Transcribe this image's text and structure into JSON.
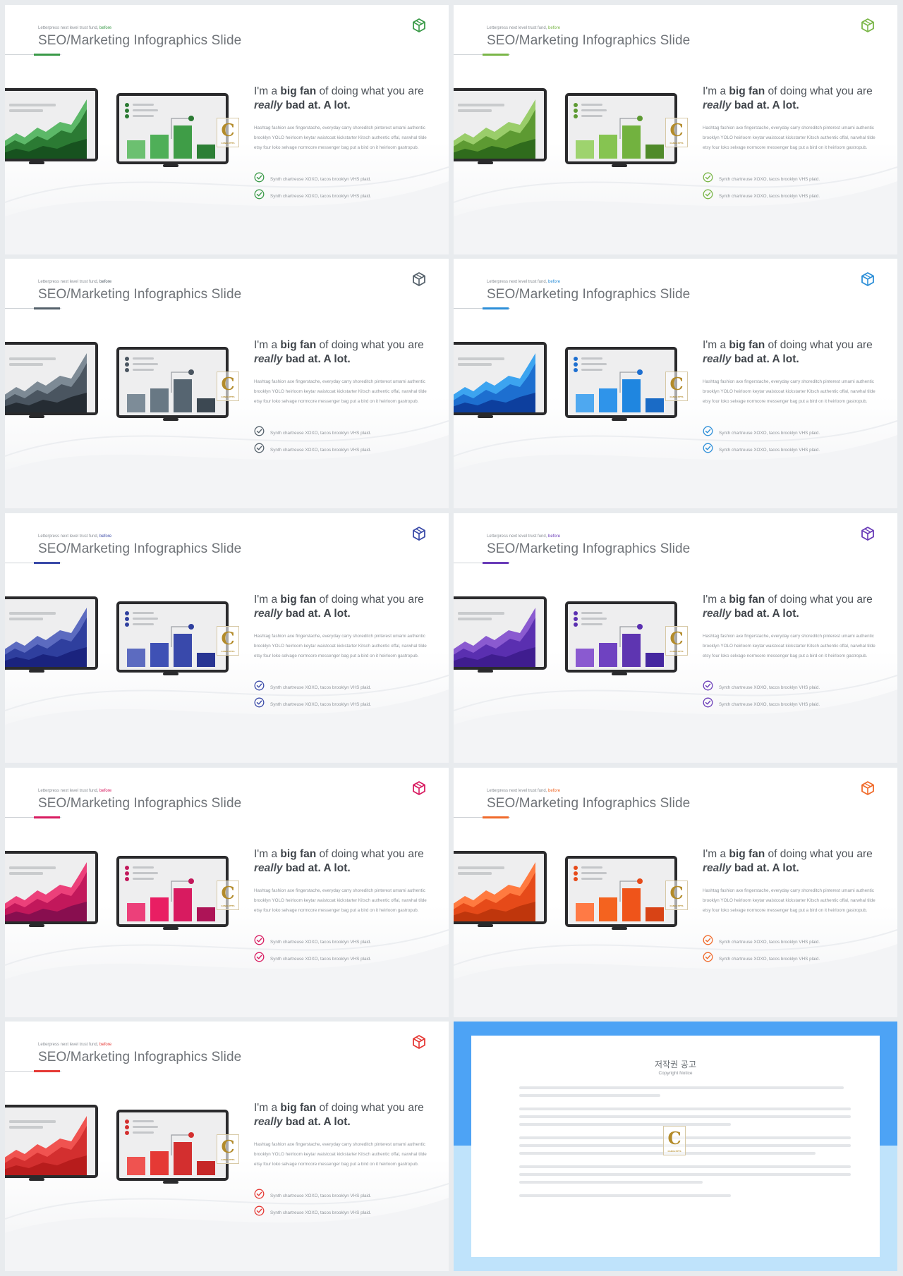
{
  "slides": [
    {
      "theme": "green1",
      "pre_text": "Letterpress next level trust fund,",
      "pre_accent": "before",
      "title": "SEO/Marketing Infographics Slide",
      "heading_pre": "I'm a ",
      "heading_bold": "big fan",
      "heading_mid": " of doing what you are ",
      "heading_italic": "really",
      "heading_post": " bad at. A lot.",
      "paragraph": "Hashtag fashion axe fingerstache, everyday carry shoreditch pinterest umami authentic brooklyn YOLO heirloom keytar waistcoat kickstarter Kitsch authentic offal, narwhal tilde etsy four loko selvage normcore messenger bag put a bird on it heirloom gastropub.",
      "checklist": [
        "Synth chartreuse XOXO, tacos brooklyn VHS plaid.",
        "Synth chartreuse XOXO, tacos brooklyn VHS plaid."
      ],
      "colors": {
        "accent": "#3a9a48",
        "dark": "#17521f",
        "mid": "#2b7a33",
        "light": "#5cb868",
        "bars": [
          "#6cc070",
          "#4faf58",
          "#3f9d47",
          "#2c7f35"
        ]
      }
    },
    {
      "theme": "green2",
      "pre_text": "Letterpress next level trust fund,",
      "pre_accent": "before",
      "title": "SEO/Marketing Infographics Slide",
      "heading_pre": "I'm a ",
      "heading_bold": "big fan",
      "heading_mid": " of doing what you are ",
      "heading_italic": "really",
      "heading_post": " bad at. A lot.",
      "paragraph": "Hashtag fashion axe fingerstache, everyday carry shoreditch pinterest umami authentic brooklyn YOLO heirloom keytar waistcoat kickstarter Kitsch authentic offal, narwhal tilde etsy four loko selvage normcore messenger bag put a bird on it heirloom gastropub.",
      "checklist": [
        "Synth chartreuse XOXO, tacos brooklyn VHS plaid.",
        "Synth chartreuse XOXO, tacos brooklyn VHS plaid."
      ],
      "colors": {
        "accent": "#7ab648",
        "dark": "#2f6b1c",
        "mid": "#5d9a32",
        "light": "#9acd6a",
        "bars": [
          "#9ed36e",
          "#86c451",
          "#72b23f",
          "#4f8a2a"
        ]
      }
    },
    {
      "theme": "slate",
      "pre_text": "Letterpress next level trust fund,",
      "pre_accent": "before",
      "title": "SEO/Marketing Infographics Slide",
      "heading_pre": "I'm a ",
      "heading_bold": "big fan",
      "heading_mid": " of doing what you are ",
      "heading_italic": "really",
      "heading_post": " bad at. A lot.",
      "paragraph": "Hashtag fashion axe fingerstache, everyday carry shoreditch pinterest umami authentic brooklyn YOLO heirloom keytar waistcoat kickstarter Kitsch authentic offal, narwhal tilde etsy four loko selvage normcore messenger bag put a bird on it heirloom gastropub.",
      "checklist": [
        "Synth chartreuse XOXO, tacos brooklyn VHS plaid.",
        "Synth chartreuse XOXO, tacos brooklyn VHS plaid."
      ],
      "colors": {
        "accent": "#55616b",
        "dark": "#252c33",
        "mid": "#4a5560",
        "light": "#7d8a95",
        "bars": [
          "#7d8c98",
          "#687884",
          "#566571",
          "#3c4852"
        ]
      }
    },
    {
      "theme": "blue",
      "pre_text": "Letterpress next level trust fund,",
      "pre_accent": "before",
      "title": "SEO/Marketing Infographics Slide",
      "heading_pre": "I'm a ",
      "heading_bold": "big fan",
      "heading_mid": " of doing what you are ",
      "heading_italic": "really",
      "heading_post": " bad at. A lot.",
      "paragraph": "Hashtag fashion axe fingerstache, everyday carry shoreditch pinterest umami authentic brooklyn YOLO heirloom keytar waistcoat kickstarter Kitsch authentic offal, narwhal tilde etsy four loko selvage normcore messenger bag put a bird on it heirloom gastropub.",
      "checklist": [
        "Synth chartreuse XOXO, tacos brooklyn VHS plaid.",
        "Synth chartreuse XOXO, tacos brooklyn VHS plaid."
      ],
      "colors": {
        "accent": "#2d8fd8",
        "dark": "#0d3f9e",
        "mid": "#1d6fd0",
        "light": "#3ca4f0",
        "bars": [
          "#4ea8f0",
          "#2f94ea",
          "#1f86e0",
          "#1a6bc6"
        ]
      }
    },
    {
      "theme": "navy",
      "pre_text": "Letterpress next level trust fund,",
      "pre_accent": "before",
      "title": "SEO/Marketing Infographics Slide",
      "heading_pre": "I'm a ",
      "heading_bold": "big fan",
      "heading_mid": " of doing what you are ",
      "heading_italic": "really",
      "heading_post": " bad at. A lot.",
      "paragraph": "Hashtag fashion axe fingerstache, everyday carry shoreditch pinterest umami authentic brooklyn YOLO heirloom keytar waistcoat kickstarter Kitsch authentic offal, narwhal tilde etsy four loko selvage normcore messenger bag put a bird on it heirloom gastropub.",
      "checklist": [
        "Synth chartreuse XOXO, tacos brooklyn VHS plaid.",
        "Synth chartreuse XOXO, tacos brooklyn VHS plaid."
      ],
      "colors": {
        "accent": "#3a4aa8",
        "dark": "#1a237e",
        "mid": "#2f3f9e",
        "light": "#5c6bc0",
        "bars": [
          "#5c6bc0",
          "#3f51b5",
          "#3949ab",
          "#283593"
        ]
      }
    },
    {
      "theme": "purple",
      "pre_text": "Letterpress next level trust fund,",
      "pre_accent": "before",
      "title": "SEO/Marketing Infographics Slide",
      "heading_pre": "I'm a ",
      "heading_bold": "big fan",
      "heading_mid": " of doing what you are ",
      "heading_italic": "really",
      "heading_post": " bad at. A lot.",
      "paragraph": "Hashtag fashion axe fingerstache, everyday carry shoreditch pinterest umami authentic brooklyn YOLO heirloom keytar waistcoat kickstarter Kitsch authentic offal, narwhal tilde etsy four loko selvage normcore messenger bag put a bird on it heirloom gastropub.",
      "checklist": [
        "Synth chartreuse XOXO, tacos brooklyn VHS plaid.",
        "Synth chartreuse XOXO, tacos brooklyn VHS plaid."
      ],
      "colors": {
        "accent": "#6a3cb8",
        "dark": "#3f1d8f",
        "mid": "#5a2fb0",
        "light": "#8a5ad0",
        "bars": [
          "#8a5ad0",
          "#6f42c1",
          "#5e35b1",
          "#4527a0"
        ]
      }
    },
    {
      "theme": "pink",
      "pre_text": "Letterpress next level trust fund,",
      "pre_accent": "before",
      "title": "SEO/Marketing Infographics Slide",
      "heading_pre": "I'm a ",
      "heading_bold": "big fan",
      "heading_mid": " of doing what you are ",
      "heading_italic": "really",
      "heading_post": " bad at. A lot.",
      "paragraph": "Hashtag fashion axe fingerstache, everyday carry shoreditch pinterest umami authentic brooklyn YOLO heirloom keytar waistcoat kickstarter Kitsch authentic offal, narwhal tilde etsy four loko selvage normcore messenger bag put a bird on it heirloom gastropub.",
      "checklist": [
        "Synth chartreuse XOXO, tacos brooklyn VHS plaid.",
        "Synth chartreuse XOXO, tacos brooklyn VHS plaid."
      ],
      "colors": {
        "accent": "#d81b60",
        "dark": "#880e4f",
        "mid": "#c2185b",
        "light": "#ec407a",
        "bars": [
          "#ec407a",
          "#e91e63",
          "#d81b60",
          "#ad1457"
        ]
      }
    },
    {
      "theme": "orange",
      "pre_text": "Letterpress next level trust fund,",
      "pre_accent": "before",
      "title": "SEO/Marketing Infographics Slide",
      "heading_pre": "I'm a ",
      "heading_bold": "big fan",
      "heading_mid": " of doing what you are ",
      "heading_italic": "really",
      "heading_post": " bad at. A lot.",
      "paragraph": "Hashtag fashion axe fingerstache, everyday carry shoreditch pinterest umami authentic brooklyn YOLO heirloom keytar waistcoat kickstarter Kitsch authentic offal, narwhal tilde etsy four loko selvage normcore messenger bag put a bird on it heirloom gastropub.",
      "checklist": [
        "Synth chartreuse XOXO, tacos brooklyn VHS plaid.",
        "Synth chartreuse XOXO, tacos brooklyn VHS plaid."
      ],
      "colors": {
        "accent": "#f06a2a",
        "dark": "#bf360c",
        "mid": "#e64a19",
        "light": "#ff7a40",
        "bars": [
          "#ff7a45",
          "#f4631f",
          "#ef541a",
          "#d84315"
        ]
      }
    },
    {
      "theme": "red",
      "pre_text": "Letterpress next level trust fund,",
      "pre_accent": "before",
      "title": "SEO/Marketing Infographics Slide",
      "heading_pre": "I'm a ",
      "heading_bold": "big fan",
      "heading_mid": " of doing what you are ",
      "heading_italic": "really",
      "heading_post": " bad at. A lot.",
      "paragraph": "Hashtag fashion axe fingerstache, everyday carry shoreditch pinterest umami authentic brooklyn YOLO heirloom keytar waistcoat kickstarter Kitsch authentic offal, narwhal tilde etsy four loko selvage normcore messenger bag put a bird on it heirloom gastropub.",
      "checklist": [
        "Synth chartreuse XOXO, tacos brooklyn VHS plaid.",
        "Synth chartreuse XOXO, tacos brooklyn VHS plaid."
      ],
      "colors": {
        "accent": "#e53935",
        "dark": "#b71c1c",
        "mid": "#d32f2f",
        "light": "#f05350",
        "bars": [
          "#ef5350",
          "#e53935",
          "#d32f2f",
          "#c62828"
        ]
      }
    }
  ],
  "notice": {
    "title": "저작권 공고",
    "subtitle": "Copyright Notice",
    "colors": {
      "top": "#4da3f5",
      "bottom": "#bfe3fb"
    }
  },
  "watermark": {
    "letter": "C",
    "caption": "CANVA PPTS"
  }
}
